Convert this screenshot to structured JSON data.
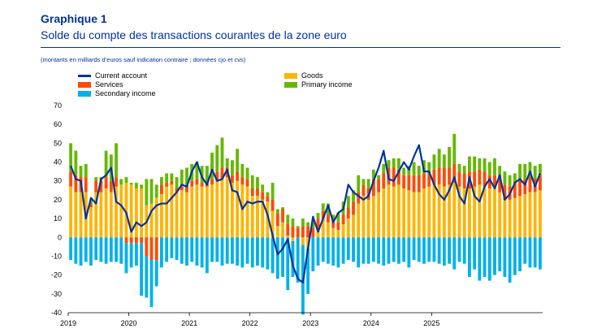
{
  "header": {
    "label": "Graphique 1",
    "title": "Solde du compte des transactions courantes de la zone euro",
    "note": "(montants en milliards d’euros sauf indication contraire ; données cjo et cvs)"
  },
  "legend": [
    {
      "key": "current_account",
      "label": "Current account",
      "kind": "line",
      "color": "#003299"
    },
    {
      "key": "goods",
      "label": "Goods",
      "kind": "bar",
      "color": "#FFB400"
    },
    {
      "key": "services",
      "label": "Services",
      "kind": "bar",
      "color": "#FF4B00"
    },
    {
      "key": "primary_income",
      "label": "Primary income",
      "kind": "bar",
      "color": "#65B800"
    },
    {
      "key": "secondary_income",
      "label": "Secondary income",
      "kind": "bar",
      "color": "#00B1EA"
    }
  ],
  "chart_data": {
    "type": "bar",
    "stacked": true,
    "title": "Solde du compte des transactions courantes de la zone euro",
    "xlabel": "",
    "ylabel": "",
    "ylim": [
      -40,
      70
    ],
    "yticks": [
      70,
      60,
      50,
      40,
      30,
      20,
      10,
      0,
      -10,
      -20,
      -30,
      -40
    ],
    "xticks": [
      "2019",
      "2020",
      "2021",
      "2022",
      "2023",
      "2024",
      "2025"
    ],
    "frequency": "monthly",
    "start": "2019-01",
    "series": [
      {
        "name": "Goods",
        "key": "goods",
        "color": "#FFB400",
        "values": [
          27,
          24,
          24,
          24,
          16,
          24,
          24,
          26,
          24,
          27,
          28,
          29,
          28,
          26,
          26,
          17,
          18,
          21,
          23,
          27,
          28,
          24,
          25,
          24,
          27,
          28,
          27,
          27,
          28,
          30,
          31,
          32,
          29,
          30,
          28,
          27,
          22,
          22,
          20,
          19,
          14,
          6,
          8,
          1,
          -2,
          0,
          -4,
          -6,
          0,
          4,
          10,
          8,
          5,
          4,
          7,
          10,
          12,
          18,
          22,
          20,
          22,
          24,
          26,
          28,
          27,
          28,
          26,
          25,
          24,
          24,
          26,
          27,
          28,
          28,
          27,
          28,
          29,
          27,
          26,
          26,
          27,
          28,
          27,
          26,
          27,
          24,
          20,
          20,
          21,
          22,
          23,
          24,
          24,
          25
        ]
      },
      {
        "name": "Services",
        "key": "services",
        "color": "#FF4B00",
        "values": [
          8,
          9,
          8,
          8,
          2,
          6,
          6,
          6,
          6,
          5,
          0,
          -3,
          -3,
          -3,
          -3,
          -10,
          -12,
          -12,
          5,
          2,
          2,
          2,
          2,
          3,
          3,
          3,
          2,
          2,
          3,
          5,
          6,
          5,
          4,
          5,
          4,
          4,
          4,
          4,
          4,
          3,
          6,
          7,
          7,
          6,
          6,
          5,
          6,
          6,
          5,
          6,
          4,
          4,
          3,
          4,
          5,
          6,
          7,
          6,
          6,
          6,
          9,
          7,
          8,
          9,
          10,
          8,
          7,
          8,
          9,
          9,
          8,
          7,
          8,
          9,
          10,
          9,
          10,
          8,
          8,
          9,
          8,
          8,
          8,
          7,
          6,
          8,
          8,
          7,
          8,
          9,
          8,
          8,
          7,
          8
        ]
      },
      {
        "name": "Primary income",
        "key": "primary_income",
        "color": "#65B800",
        "values": [
          15,
          13,
          6,
          7,
          2,
          2,
          2,
          14,
          14,
          18,
          3,
          3,
          1,
          3,
          2,
          14,
          13,
          7,
          4,
          5,
          4,
          6,
          9,
          10,
          9,
          9,
          9,
          9,
          14,
          14,
          16,
          5,
          8,
          12,
          7,
          6,
          7,
          6,
          4,
          2,
          9,
          2,
          1,
          5,
          4,
          1,
          4,
          2,
          4,
          3,
          4,
          6,
          4,
          5,
          7,
          6,
          6,
          9,
          3,
          5,
          5,
          2,
          5,
          4,
          5,
          6,
          4,
          5,
          7,
          5,
          7,
          6,
          8,
          10,
          7,
          11,
          16,
          4,
          4,
          8,
          8,
          6,
          7,
          7,
          9,
          6,
          7,
          6,
          5,
          8,
          8,
          8,
          7,
          6
        ]
      },
      {
        "name": "Secondary income",
        "key": "secondary_income",
        "color": "#00B1EA",
        "values": [
          -12,
          -14,
          -15,
          -13,
          -15,
          -12,
          -13,
          -14,
          -13,
          -13,
          -14,
          -16,
          -13,
          -12,
          -28,
          -22,
          -25,
          -14,
          -16,
          -13,
          -11,
          -12,
          -14,
          -15,
          -13,
          -15,
          -16,
          -19,
          -13,
          -13,
          -15,
          -14,
          -14,
          -15,
          -16,
          -14,
          -16,
          -15,
          -16,
          -17,
          -19,
          -22,
          -21,
          -28,
          -19,
          -24,
          -37,
          -24,
          -18,
          -15,
          -13,
          -14,
          -15,
          -16,
          -14,
          -12,
          -13,
          -16,
          -14,
          -14,
          -13,
          -14,
          -15,
          -14,
          -13,
          -14,
          -13,
          -16,
          -12,
          -13,
          -14,
          -13,
          -13,
          -14,
          -15,
          -14,
          -17,
          -13,
          -14,
          -21,
          -17,
          -23,
          -21,
          -23,
          -20,
          -18,
          -21,
          -24,
          -20,
          -18,
          -14,
          -16,
          -16,
          -17
        ]
      },
      {
        "name": "Current account",
        "key": "current_account",
        "color": "#003299",
        "kind": "line",
        "values": [
          38,
          31,
          30,
          10,
          21,
          18,
          31,
          33,
          37,
          19,
          17,
          13,
          3,
          8,
          6,
          8,
          14,
          17,
          18,
          18,
          21,
          24,
          28,
          27,
          35,
          40,
          32,
          28,
          36,
          30,
          31,
          36,
          25,
          24,
          15,
          19,
          18,
          19,
          19,
          12,
          1,
          -9,
          -6,
          -1,
          -15,
          -22,
          -24,
          -6,
          11,
          3,
          10,
          17,
          8,
          13,
          15,
          28,
          24,
          22,
          20,
          22,
          30,
          37,
          46,
          31,
          30,
          35,
          40,
          36,
          43,
          49,
          35,
          35,
          28,
          23,
          20,
          25,
          32,
          22,
          18,
          32,
          22,
          19,
          27,
          31,
          26,
          33,
          20,
          23,
          29,
          31,
          28,
          35,
          27,
          34
        ]
      }
    ]
  }
}
